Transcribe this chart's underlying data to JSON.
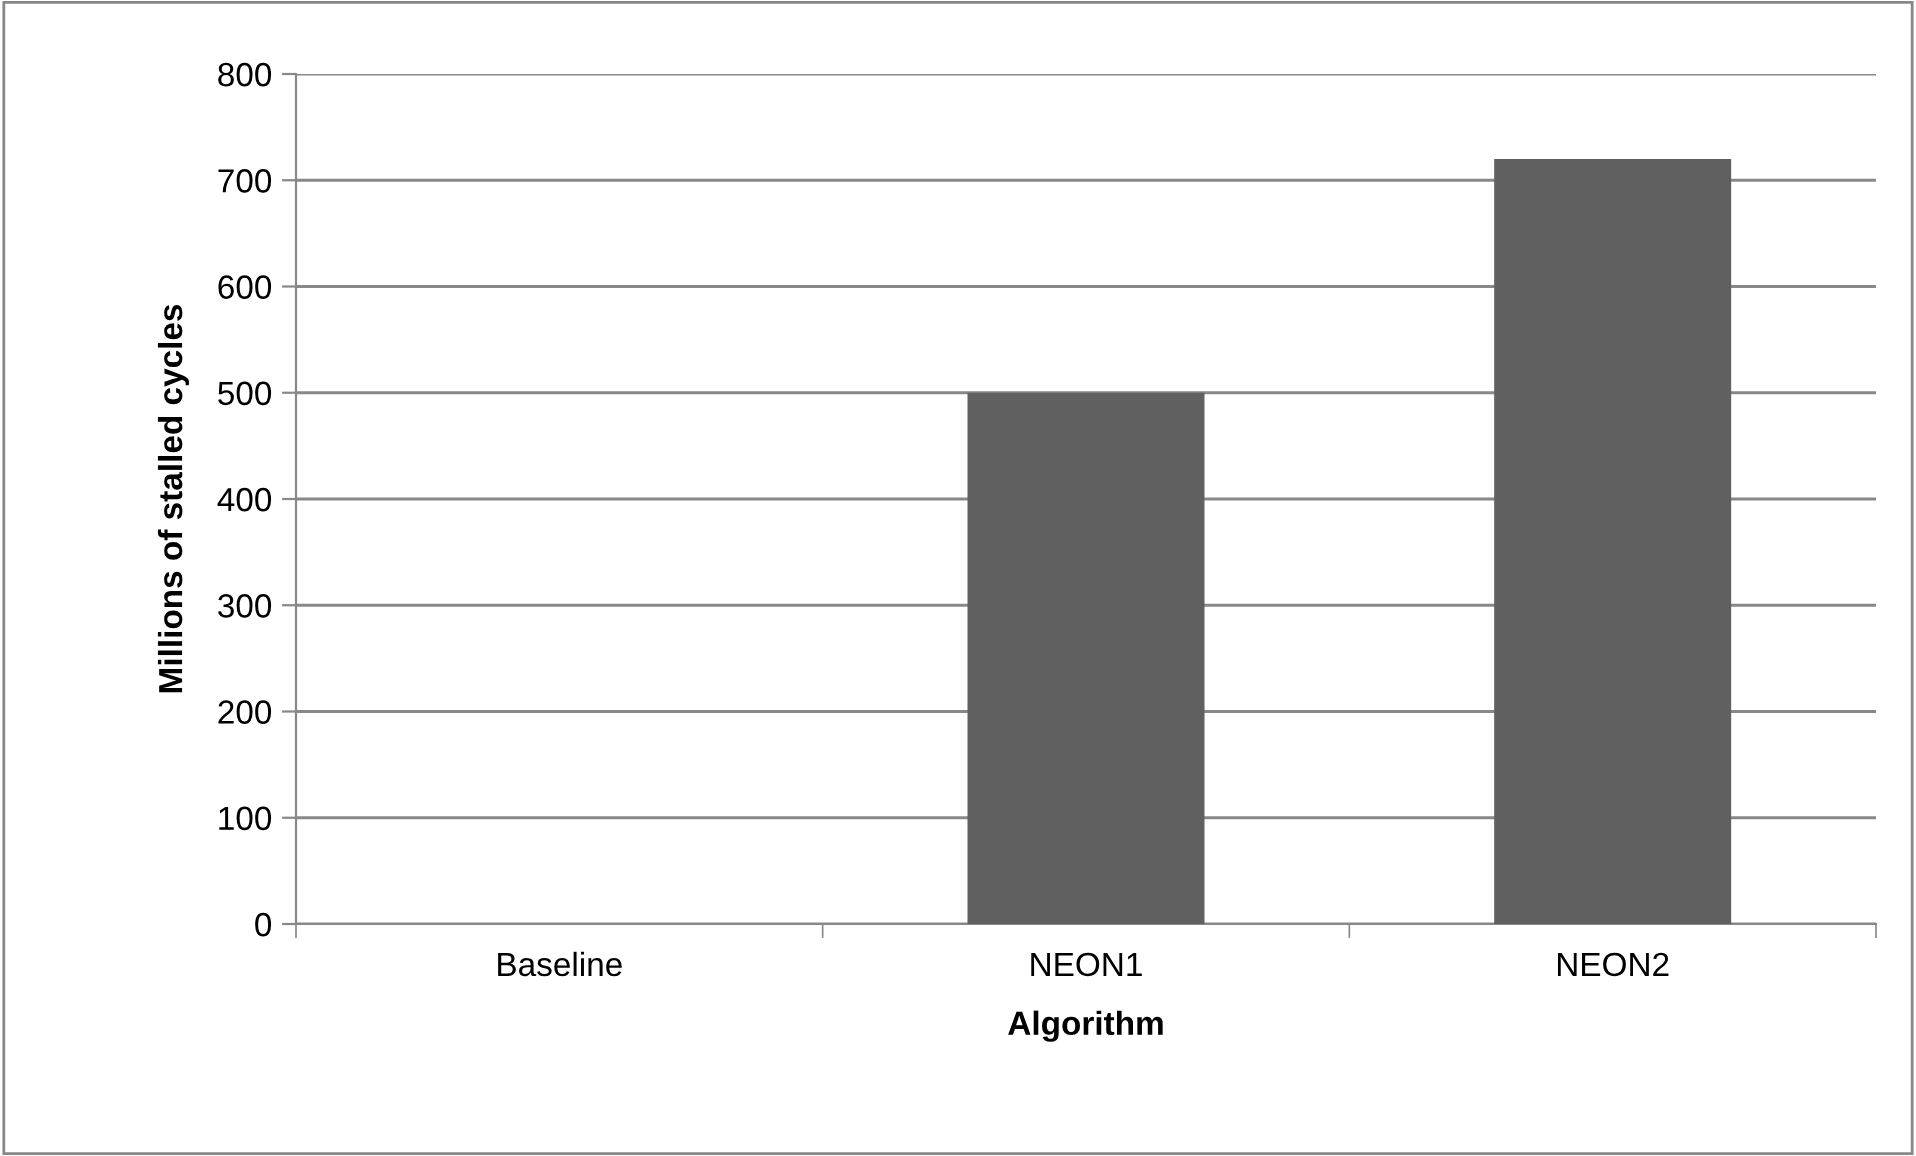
{
  "chart_data": {
    "type": "bar",
    "xlabel": "Algorithm",
    "ylabel": "Millions of stalled cycles",
    "categories": [
      "Baseline",
      "NEON1",
      "NEON2"
    ],
    "values": [
      0,
      500,
      720
    ],
    "color": "#606060",
    "ylim": [
      0,
      800
    ],
    "yticks": [
      0,
      100,
      200,
      300,
      400,
      500,
      600,
      700,
      800
    ],
    "grid": "y",
    "legend": false
  }
}
